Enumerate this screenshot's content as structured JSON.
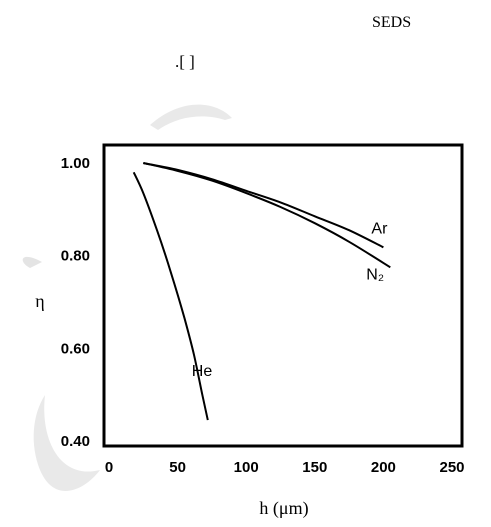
{
  "header": {
    "tag": "SEDS",
    "citation": ".[ ]"
  },
  "colors": {
    "curve": "#000000",
    "frame": "#000000",
    "watermark": "#e9e9e9"
  },
  "chart_data": {
    "type": "line",
    "title": "",
    "xlabel": "h (μm)",
    "ylabel": "η",
    "xlim": [
      0,
      250
    ],
    "ylim": [
      0.4,
      1.04
    ],
    "xticks": [
      0,
      50,
      100,
      150,
      200,
      250
    ],
    "xtick_labels": [
      "0",
      "50",
      "100",
      "150",
      "200",
      "250"
    ],
    "yticks": [
      0.4,
      0.6,
      0.8,
      1.0
    ],
    "ytick_labels": [
      "0.40",
      "0.60",
      "0.80",
      "1.00"
    ],
    "grid": false,
    "legend": "none",
    "series": [
      {
        "name": "Ar",
        "x": [
          25,
          50,
          75,
          100,
          125,
          150,
          175,
          200
        ],
        "y": [
          1.0,
          0.985,
          0.965,
          0.94,
          0.915,
          0.885,
          0.855,
          0.818
        ]
      },
      {
        "name": "N₂",
        "x": [
          25,
          50,
          75,
          100,
          125,
          150,
          175,
          205
        ],
        "y": [
          1.0,
          0.983,
          0.962,
          0.935,
          0.905,
          0.87,
          0.83,
          0.775
        ]
      },
      {
        "name": "He",
        "x": [
          18,
          25,
          35,
          45,
          55,
          62,
          68,
          72
        ],
        "y": [
          0.98,
          0.935,
          0.855,
          0.765,
          0.665,
          0.585,
          0.5,
          0.445
        ]
      }
    ]
  }
}
